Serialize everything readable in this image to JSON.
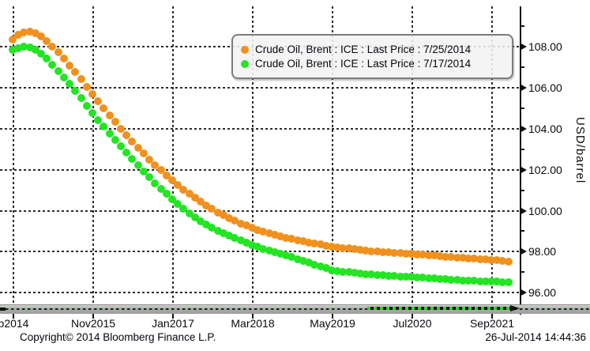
{
  "chart_data": {
    "type": "scatter",
    "description": "Brent crude oil futures curves on two observation dates",
    "x_unit": "monthly futures contract",
    "x_tick_labels": [
      "p2014",
      "Nov2015",
      "Jan2017",
      "Mar2018",
      "May2019",
      "Jul2020",
      "Sep2021"
    ],
    "x_range_months": 88,
    "grid": "dashed both axes",
    "legend_position": "top-right inside plot",
    "y_axis": {
      "title": "USD/barrel",
      "major_ticks": [
        {
          "label": "108.00",
          "value": 108
        },
        {
          "label": "106.00",
          "value": 106
        },
        {
          "label": "104.00",
          "value": 104
        },
        {
          "label": "102.00",
          "value": 102
        },
        {
          "label": "100.00",
          "value": 100
        },
        {
          "label": "98.00",
          "value": 98
        },
        {
          "label": "96.00",
          "value": 96
        }
      ],
      "minor_ticks": [
        109,
        107,
        105,
        103,
        101,
        99,
        97
      ],
      "range_shown": [
        95.0,
        109.3
      ]
    },
    "series": [
      {
        "name": "Crude Oil, Brent : ICE : Last Price : 7/25/2014",
        "color": "#F0911E",
        "values": [
          108.35,
          108.6,
          108.72,
          108.75,
          108.67,
          108.5,
          108.28,
          108.02,
          107.74,
          107.43,
          107.1,
          106.76,
          106.41,
          106.06,
          105.71,
          105.36,
          105.01,
          104.67,
          104.33,
          104.0,
          103.68,
          103.37,
          103.07,
          102.78,
          102.5,
          102.23,
          101.97,
          101.72,
          101.48,
          101.25,
          101.03,
          100.82,
          100.62,
          100.43,
          100.25,
          100.08,
          99.92,
          99.77,
          99.63,
          99.5,
          99.38,
          99.27,
          99.17,
          99.07,
          98.98,
          98.9,
          98.82,
          98.75,
          98.68,
          98.62,
          98.56,
          98.5,
          98.45,
          98.4,
          98.35,
          98.3,
          98.26,
          98.22,
          98.18,
          98.15,
          98.12,
          98.09,
          98.06,
          98.03,
          98.0,
          97.98,
          97.96,
          97.94,
          97.92,
          97.9,
          97.88,
          97.86,
          97.84,
          97.82,
          97.8,
          97.78,
          97.76,
          97.74,
          97.72,
          97.7,
          97.68,
          97.66,
          97.64,
          97.62,
          97.6,
          97.57,
          97.55,
          97.52
        ]
      },
      {
        "name": "Crude Oil, Brent : ICE : Last Price : 7/17/2014",
        "color": "#23E523",
        "values": [
          107.86,
          107.95,
          108.0,
          107.97,
          107.85,
          107.66,
          107.42,
          107.14,
          106.83,
          106.51,
          106.18,
          105.84,
          105.49,
          105.13,
          104.76,
          104.43,
          104.1,
          103.78,
          103.46,
          103.15,
          102.84,
          102.53,
          102.22,
          101.92,
          101.63,
          101.35,
          101.08,
          100.82,
          100.57,
          100.33,
          100.1,
          99.88,
          99.67,
          99.47,
          99.31,
          99.17,
          99.03,
          98.9,
          98.78,
          98.66,
          98.55,
          98.44,
          98.33,
          98.23,
          98.13,
          98.04,
          97.96,
          97.89,
          97.82,
          97.73,
          97.64,
          97.55,
          97.46,
          97.37,
          97.28,
          97.19,
          97.1,
          97.06,
          97.02,
          96.99,
          96.96,
          96.93,
          96.9,
          96.88,
          96.86,
          96.84,
          96.82,
          96.81,
          96.79,
          96.78,
          96.77,
          96.75,
          96.73,
          96.71,
          96.69,
          96.67,
          96.65,
          96.63,
          96.61,
          96.59,
          96.58,
          96.57,
          96.56,
          96.55,
          96.54,
          96.53,
          96.52,
          96.5
        ]
      }
    ]
  },
  "footer": {
    "copyright": "Copyright© 2014 Bloomberg Finance L.P.",
    "timestamp": "26-Jul-2014 14:44:36"
  }
}
